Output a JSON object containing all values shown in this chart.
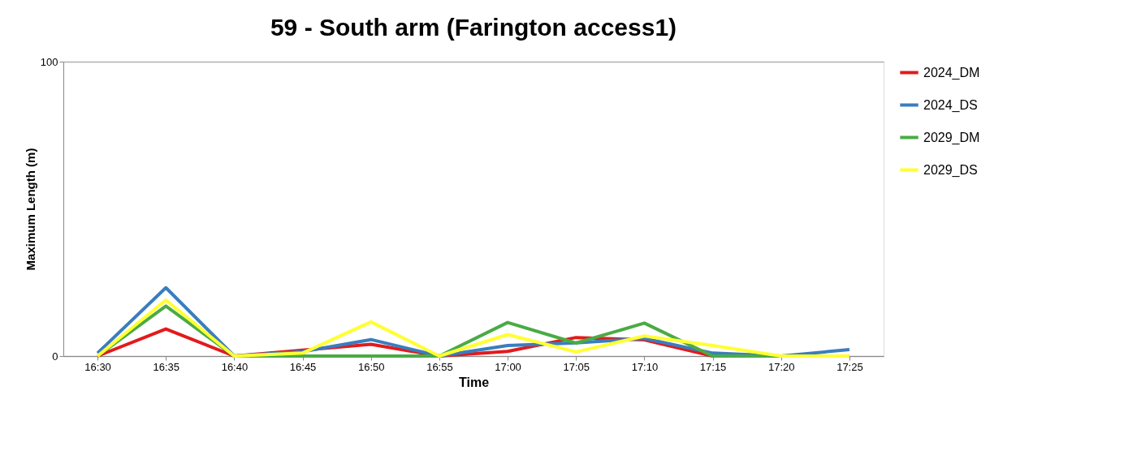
{
  "chart_data": {
    "type": "line",
    "title": "59 - South arm (Farington access1)",
    "xlabel": "Time",
    "ylabel": "Maximum Length (m)",
    "categories": [
      "16:30",
      "16:35",
      "16:40",
      "16:45",
      "16:50",
      "16:55",
      "17:00",
      "17:05",
      "17:10",
      "17:15",
      "17:20",
      "17:25"
    ],
    "series": [
      {
        "name": "2024_DM",
        "color": "#e31a1c",
        "values": [
          0,
          9.2,
          0,
          2,
          4,
          0,
          1.6,
          6.3,
          5.5,
          0,
          0,
          0
        ]
      },
      {
        "name": "2024_DS",
        "color": "#3a7dbf",
        "values": [
          1,
          23.2,
          0,
          1.5,
          5.6,
          0,
          3.6,
          4.5,
          6,
          1,
          0,
          2.2
        ]
      },
      {
        "name": "2029_DM",
        "color": "#4aab44",
        "values": [
          0,
          17,
          0,
          0,
          0,
          0,
          11.4,
          4.4,
          11.2,
          0,
          0,
          0
        ]
      },
      {
        "name": "2029_DS",
        "color": "#ffff33",
        "values": [
          0,
          19,
          0,
          1,
          11.6,
          0,
          7.3,
          1.4,
          6.8,
          3.6,
          0,
          0
        ]
      }
    ],
    "ylim": [
      0,
      100
    ],
    "yticks": [
      0,
      100
    ],
    "grid": "y",
    "legend": "right",
    "marker": "none",
    "line_style": "solid"
  }
}
